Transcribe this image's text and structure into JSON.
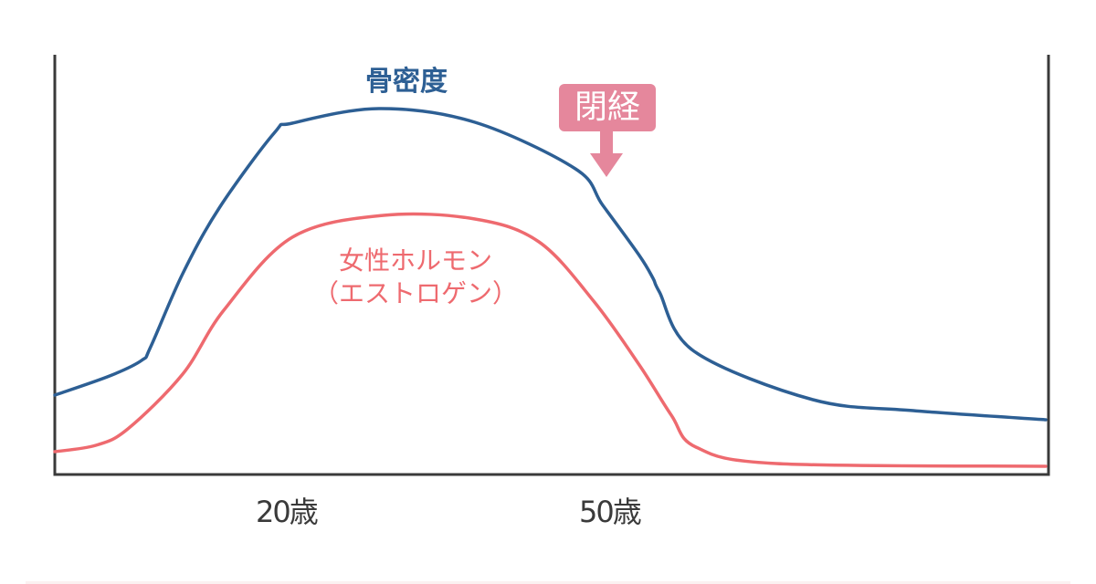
{
  "labels": {
    "bone_density": "骨密度",
    "female_hormone_line1": "女性ホルモン",
    "female_hormone_line2": "（エストロゲン）",
    "menopause": "閉経"
  },
  "x_ticks": [
    "20歳",
    "50歳"
  ],
  "colors": {
    "bone_density": "#2d5f94",
    "female_hormone": "#ee6a6f",
    "menopause_marker": "#e5879c",
    "axes": "#3a3a3a"
  }
}
